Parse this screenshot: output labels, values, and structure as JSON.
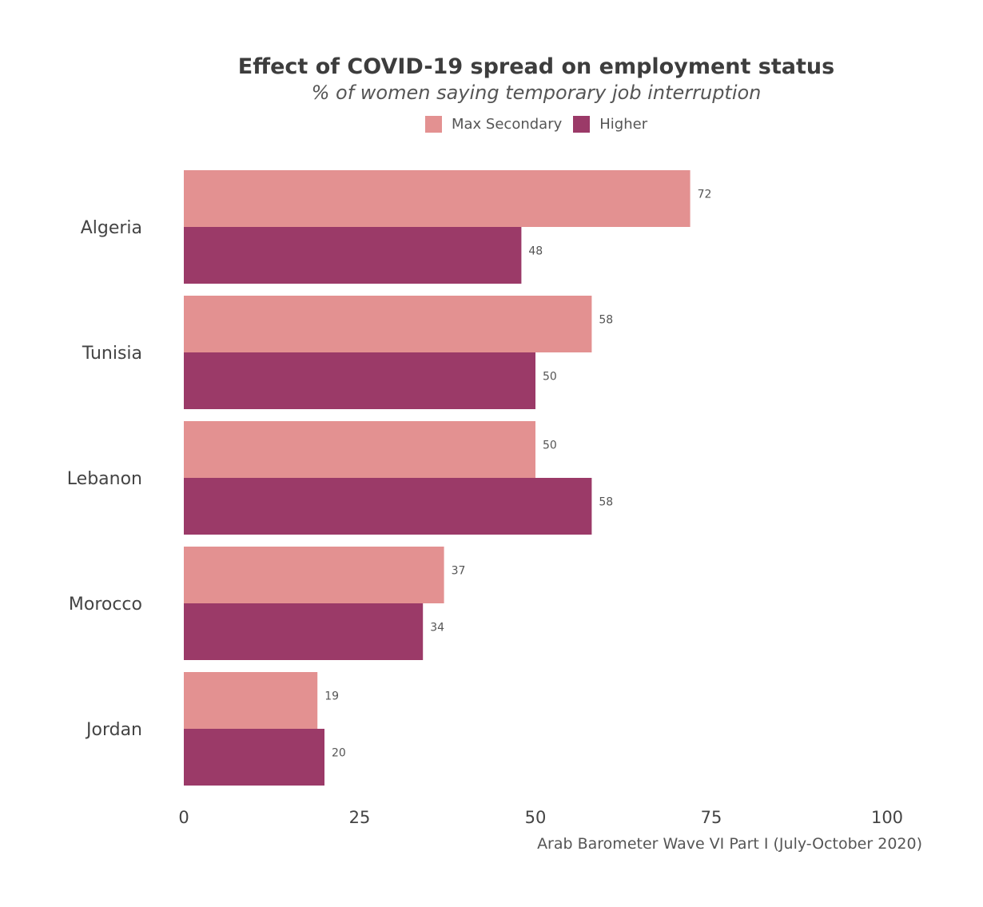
{
  "chart_data": {
    "type": "bar",
    "orientation": "horizontal",
    "title": "Effect of COVID-19 spread on employment status",
    "subtitle": "% of women saying temporary job interruption",
    "categories": [
      "Algeria",
      "Tunisia",
      "Lebanon",
      "Morocco",
      "Jordan"
    ],
    "series": [
      {
        "name": "Max Secondary",
        "color": "#E39191",
        "values": [
          72,
          58,
          50,
          37,
          19
        ]
      },
      {
        "name": "Higher",
        "color": "#9B3A68",
        "values": [
          48,
          50,
          58,
          34,
          20
        ]
      }
    ],
    "xlim": [
      0,
      100
    ],
    "xticks": [
      "0",
      "25",
      "50",
      "75",
      "100"
    ],
    "xtick_values": [
      0,
      25,
      50,
      75,
      100
    ],
    "grid": false,
    "legend_position": "top",
    "caption": "Arab Barometer Wave VI Part I (July-October 2020)"
  }
}
